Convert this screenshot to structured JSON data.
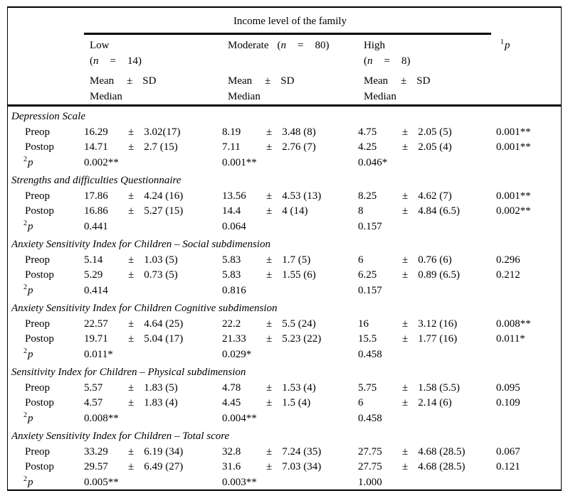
{
  "table": {
    "spanner_title": "Income level of the family",
    "pm": "±",
    "columns": {
      "low": {
        "name": "Low",
        "n_open": "(",
        "n_var": "n",
        "n_eq": "=",
        "n_val": "14)"
      },
      "moderate": {
        "name": "Moderate",
        "n_open": "(",
        "n_var": "n",
        "n_eq": "=",
        "n_val": "80)"
      },
      "high": {
        "name": "High",
        "n_open": "(",
        "n_var": "n",
        "n_eq": "=",
        "n_val": "8)"
      },
      "p": {
        "sup": "1",
        "letter": "p"
      }
    },
    "subheader": {
      "mean": "Mean",
      "pm": "±",
      "sd": "SD",
      "median": "Median"
    },
    "row_labels": {
      "preop": "Preop",
      "postop": "Postop",
      "p_sup": "2",
      "p_letter": "p"
    },
    "sections": [
      {
        "title": "Depression Scale",
        "preop": {
          "low": [
            "16.29",
            "3.02(17)"
          ],
          "moderate": [
            "8.19",
            "3.48 (8)"
          ],
          "high": [
            "4.75",
            "2.05 (5)"
          ],
          "p": "0.001**"
        },
        "postop": {
          "low": [
            "14.71",
            "2.7 (15)"
          ],
          "moderate": [
            "7.11",
            "2.76 (7)"
          ],
          "high": [
            "4.25",
            "2.05 (4)"
          ],
          "p": "0.001**"
        },
        "p2": {
          "low": "0.002**",
          "moderate": "0.001**",
          "high": "0.046*"
        }
      },
      {
        "title": "Strengths and difficulties Questionnaire",
        "preop": {
          "low": [
            "17.86",
            "4.24 (16)"
          ],
          "moderate": [
            "13.56",
            "4.53 (13)"
          ],
          "high": [
            "8.25",
            "4.62 (7)"
          ],
          "p": "0.001**"
        },
        "postop": {
          "low": [
            "16.86",
            "5.27 (15)"
          ],
          "moderate": [
            "14.4",
            "4 (14)"
          ],
          "high": [
            "8",
            "4.84 (6.5)"
          ],
          "p": "0.002**"
        },
        "p2": {
          "low": "0.441",
          "moderate": "0.064",
          "high": "0.157"
        }
      },
      {
        "title": "Anxiety Sensitivity Index for Children – Social subdimension",
        "preop": {
          "low": [
            "5.14",
            "1.03 (5)"
          ],
          "moderate": [
            "5.83",
            "1.7 (5)"
          ],
          "high": [
            "6",
            "0.76 (6)"
          ],
          "p": "0.296"
        },
        "postop": {
          "low": [
            "5.29",
            "0.73 (5)"
          ],
          "moderate": [
            "5.83",
            "1.55 (6)"
          ],
          "high": [
            "6.25",
            "0.89 (6.5)"
          ],
          "p": "0.212"
        },
        "p2": {
          "low": "0.414",
          "moderate": "0.816",
          "high": "0.157"
        }
      },
      {
        "title": "Anxiety Sensitivity Index for Children Cognitive subdimension",
        "preop": {
          "low": [
            "22.57",
            "4.64 (25)"
          ],
          "moderate": [
            "22.2",
            "5.5 (24)"
          ],
          "high": [
            "16",
            "3.12 (16)"
          ],
          "p": "0.008**"
        },
        "postop": {
          "low": [
            "19.71",
            "5.04 (17)"
          ],
          "moderate": [
            "21.33",
            "5.23 (22)"
          ],
          "high": [
            "15.5",
            "1.77 (16)"
          ],
          "p": "0.011*"
        },
        "p2": {
          "low": "0.011*",
          "moderate": "0.029*",
          "high": "0.458"
        }
      },
      {
        "title": "Sensitivity Index for Children – Physical subdimension",
        "preop": {
          "low": [
            "5.57",
            "1.83 (5)"
          ],
          "moderate": [
            "4.78",
            "1.53 (4)"
          ],
          "high": [
            "5.75",
            "1.58 (5.5)"
          ],
          "p": "0.095"
        },
        "postop": {
          "low": [
            "4.57",
            "1.83 (4)"
          ],
          "moderate": [
            "4.45",
            "1.5 (4)"
          ],
          "high": [
            "6",
            "2.14 (6)"
          ],
          "p": "0.109"
        },
        "p2": {
          "low": "0.008**",
          "moderate": "0.004**",
          "high": "0.458"
        }
      },
      {
        "title": "Anxiety Sensitivity Index for Children – Total score",
        "preop": {
          "low": [
            "33.29",
            "6.19 (34)"
          ],
          "moderate": [
            "32.8",
            "7.24 (35)"
          ],
          "high": [
            "27.75",
            "4.68 (28.5)"
          ],
          "p": "0.067"
        },
        "postop": {
          "low": [
            "29.57",
            "6.49 (27)"
          ],
          "moderate": [
            "31.6",
            "7.03 (34)"
          ],
          "high": [
            "27.75",
            "4.68 (28.5)"
          ],
          "p": "0.121"
        },
        "p2": {
          "low": "0.005**",
          "moderate": "0.003**",
          "high": "1.000"
        }
      }
    ]
  }
}
